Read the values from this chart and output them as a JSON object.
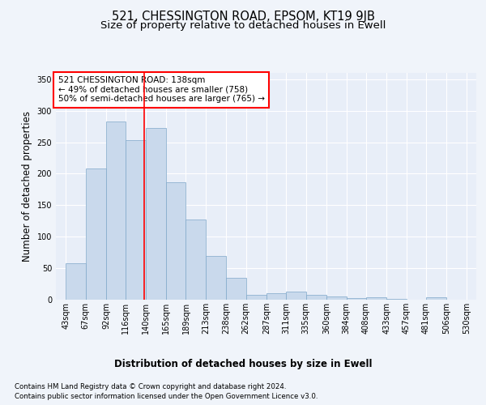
{
  "title_line1": "521, CHESSINGTON ROAD, EPSOM, KT19 9JB",
  "title_line2": "Size of property relative to detached houses in Ewell",
  "xlabel": "Distribution of detached houses by size in Ewell",
  "ylabel": "Number of detached properties",
  "footer_line1": "Contains HM Land Registry data © Crown copyright and database right 2024.",
  "footer_line2": "Contains public sector information licensed under the Open Government Licence v3.0.",
  "annotation_line1": "521 CHESSINGTON ROAD: 138sqm",
  "annotation_line2": "← 49% of detached houses are smaller (758)",
  "annotation_line3": "50% of semi-detached houses are larger (765) →",
  "bar_edges": [
    43,
    67,
    92,
    116,
    140,
    165,
    189,
    213,
    238,
    262,
    287,
    311,
    335,
    360,
    384,
    408,
    433,
    457,
    481,
    506,
    530
  ],
  "bar_heights": [
    58,
    208,
    283,
    253,
    272,
    187,
    127,
    70,
    35,
    8,
    10,
    13,
    8,
    5,
    2,
    4,
    1,
    0,
    4,
    0
  ],
  "bar_color": "#c9d9ec",
  "bar_edge_color": "#7fa8c9",
  "vline_x": 138,
  "vline_color": "red",
  "ylim": [
    0,
    360
  ],
  "yticks": [
    0,
    50,
    100,
    150,
    200,
    250,
    300,
    350
  ],
  "bg_color": "#f0f4fa",
  "plot_bg_color": "#e8eef8",
  "grid_color": "#ffffff",
  "title_fontsize": 10.5,
  "subtitle_fontsize": 9.5,
  "tick_label_fontsize": 7,
  "axis_label_fontsize": 8.5,
  "footer_fontsize": 6.2,
  "annotation_fontsize": 7.5,
  "annotation_box_color": "white",
  "annotation_box_edge": "red"
}
